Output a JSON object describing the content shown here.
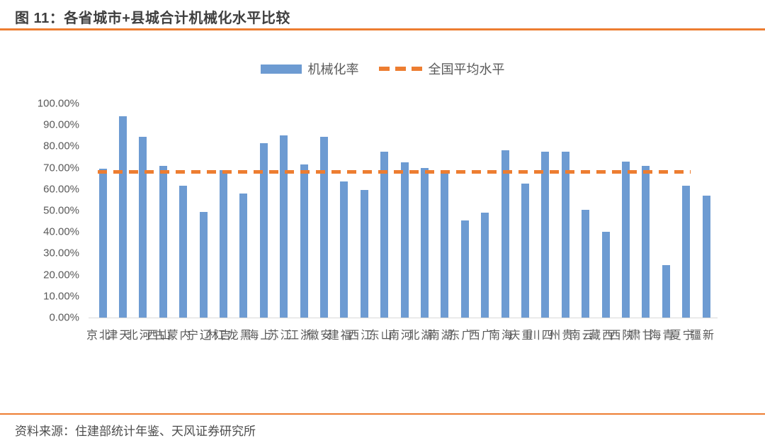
{
  "title": "图 11：各省城市+县城合计机械化水平比较",
  "source": "资料来源：住建部统计年鉴、天风证券研究所",
  "legend": {
    "bars_label": "机械化率",
    "line_label": "全国平均水平"
  },
  "colors": {
    "accent_orange": "#ED7D31",
    "bar_blue": "#6D9BD2",
    "title_text": "#3F3F3F",
    "axis_text": "#595959",
    "source_text": "#4D4D4D",
    "axis_line": "#D9D9D9"
  },
  "chart_data": {
    "type": "bar",
    "title": "图 11：各省城市+县城合计机械化水平比较",
    "xlabel": "",
    "ylabel": "",
    "ylim": [
      0,
      100
    ],
    "grid": false,
    "legend_position": "top",
    "yticks": [
      "100.00%",
      "90.00%",
      "80.00%",
      "70.00%",
      "60.00%",
      "50.00%",
      "40.00%",
      "30.00%",
      "20.00%",
      "10.00%",
      "0.00%"
    ],
    "categories": [
      "北京",
      "天津",
      "河北",
      "山西",
      "内蒙古",
      "辽宁",
      "吉林",
      "黑龙江",
      "上海",
      "江苏",
      "浙江",
      "安徽",
      "福建",
      "江西",
      "山东",
      "河南",
      "湖北",
      "湖南",
      "广东",
      "广西",
      "海南",
      "重庆",
      "四川",
      "贵州",
      "云南",
      "西藏",
      "陕西",
      "甘肃",
      "青海",
      "宁夏",
      "新疆"
    ],
    "series": [
      {
        "name": "机械化率",
        "type": "bar",
        "unit": "%",
        "values": [
          69.5,
          94,
          84.5,
          71,
          61.5,
          49.5,
          69,
          58,
          81.5,
          85,
          71.5,
          84.5,
          63.5,
          59.5,
          77.5,
          72.5,
          70,
          67.5,
          45.5,
          49,
          78,
          62.5,
          77.5,
          77.5,
          50.5,
          40,
          73,
          71,
          24.5,
          61.5,
          57
        ]
      },
      {
        "name": "全国平均水平",
        "type": "dashed-line",
        "unit": "%",
        "value": 68
      }
    ]
  }
}
